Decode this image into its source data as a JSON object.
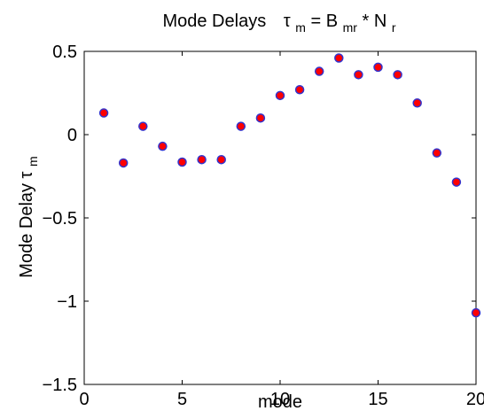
{
  "chart_data": {
    "type": "scatter",
    "title": {
      "prefix": "Mode Delays",
      "tau": "τ",
      "tau_sub": "m",
      "eq": " = B",
      "b_sub": "mr",
      "mid": " * N",
      "n_sub": "r"
    },
    "xlabel": "mode",
    "ylabel": {
      "text": "Mode Delay ",
      "tau": "τ",
      "sub": "m"
    },
    "xlim": [
      0,
      20
    ],
    "ylim": [
      -1.5,
      0.5
    ],
    "xticks": [
      0,
      5,
      10,
      15,
      20
    ],
    "xtick_labels": [
      "0",
      "5",
      "10",
      "15",
      "20"
    ],
    "yticks": [
      0.5,
      0,
      -0.5,
      -1,
      -1.5
    ],
    "ytick_labels": [
      "0.5",
      "0",
      "−0.5",
      "−1",
      "−1.5"
    ],
    "grid": false,
    "marker_fill": "#ff0000",
    "marker_edge": "#3333cc",
    "x": [
      1,
      2,
      3,
      4,
      5,
      6,
      7,
      8,
      9,
      10,
      11,
      12,
      13,
      14,
      15,
      16,
      17,
      18,
      19,
      20
    ],
    "y": [
      0.13,
      -0.17,
      0.05,
      -0.07,
      -0.165,
      -0.15,
      -0.15,
      0.05,
      0.1,
      0.235,
      0.27,
      0.38,
      0.46,
      0.36,
      0.405,
      0.36,
      0.19,
      -0.11,
      -0.285,
      -1.07
    ]
  }
}
